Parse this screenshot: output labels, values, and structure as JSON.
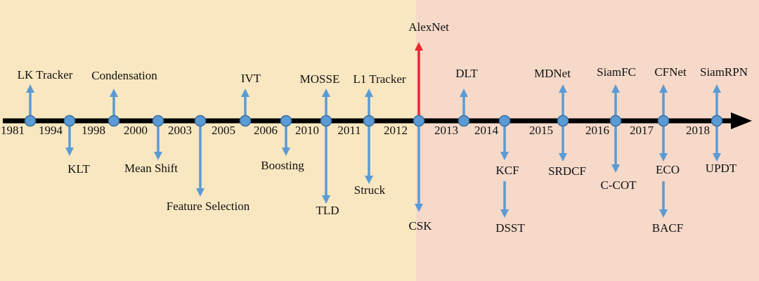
{
  "years": [
    "1981",
    "1994",
    "1998",
    "2000",
    "2003",
    "2005",
    "2006",
    "2010",
    "2011",
    "2012",
    "2013",
    "2014",
    "2015",
    "2016",
    "2017",
    "2018"
  ],
  "methods": [
    "LK Tracker",
    "KLT",
    "Condensation",
    "Mean Shift",
    "Feature Selection",
    "IVT",
    "Boosting",
    "MOSSE",
    "TLD",
    "L1 Tracker",
    "Struck",
    "AlexNet",
    "CSK",
    "DLT",
    "KCF",
    "DSST",
    "MDNet",
    "SRDCF",
    "SiamFC",
    "C-COT",
    "CFNet",
    "ECO",
    "BACF",
    "SiamRPN",
    "UPDT"
  ]
}
